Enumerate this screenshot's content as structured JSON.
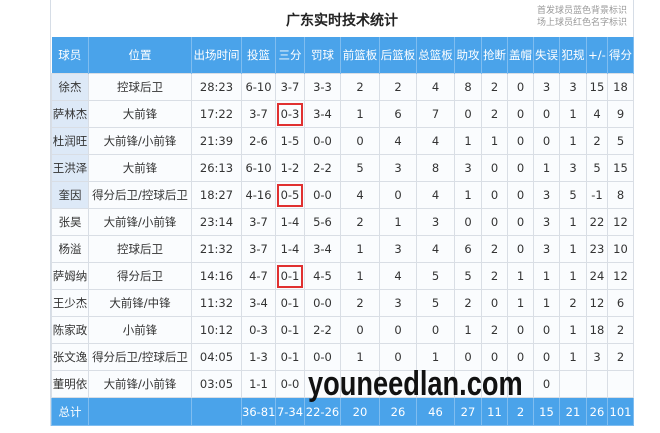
{
  "title": "广东实时技术统计",
  "legend": [
    "首发球员蓝色背景标识",
    "场上球员红色名字标识"
  ],
  "headers": [
    "球员",
    "位置",
    "出场时间",
    "投篮",
    "三分",
    "罚球",
    "前篮板",
    "后篮板",
    "总篮板",
    "助攻",
    "抢断",
    "盖帽",
    "失误",
    "犯规",
    "+/-",
    "得分"
  ],
  "rows": [
    [
      "徐杰",
      "控球后卫",
      "28:23",
      "6-10",
      "3-7",
      "3-3",
      "2",
      "2",
      "4",
      "8",
      "2",
      "0",
      "3",
      "3",
      "15",
      "18"
    ],
    [
      "萨林杰",
      "大前锋",
      "17:22",
      "3-7",
      "0-3",
      "3-4",
      "1",
      "6",
      "7",
      "0",
      "2",
      "0",
      "0",
      "1",
      "4",
      "9"
    ],
    [
      "杜润旺",
      "大前锋/小前锋",
      "21:39",
      "2-6",
      "1-5",
      "0-0",
      "0",
      "4",
      "4",
      "1",
      "1",
      "0",
      "0",
      "1",
      "2",
      "5"
    ],
    [
      "王洪泽",
      "大前锋",
      "26:13",
      "6-10",
      "1-2",
      "2-2",
      "5",
      "3",
      "8",
      "3",
      "0",
      "0",
      "1",
      "3",
      "5",
      "15"
    ],
    [
      "奎因",
      "得分后卫/控球后卫",
      "18:27",
      "4-16",
      "0-5",
      "0-0",
      "4",
      "0",
      "4",
      "1",
      "0",
      "0",
      "3",
      "5",
      "-1",
      "8"
    ],
    [
      "张昊",
      "大前锋/小前锋",
      "23:14",
      "3-7",
      "1-4",
      "5-6",
      "2",
      "1",
      "3",
      "0",
      "0",
      "0",
      "3",
      "1",
      "22",
      "12"
    ],
    [
      "杨溢",
      "控球后卫",
      "21:32",
      "3-7",
      "1-4",
      "3-4",
      "1",
      "3",
      "4",
      "6",
      "2",
      "0",
      "3",
      "1",
      "23",
      "10"
    ],
    [
      "萨姆纳",
      "得分后卫",
      "14:16",
      "4-7",
      "0-1",
      "4-5",
      "1",
      "4",
      "5",
      "5",
      "2",
      "1",
      "1",
      "1",
      "24",
      "12"
    ],
    [
      "王少杰",
      "大前锋/中锋",
      "11:32",
      "3-4",
      "0-1",
      "0-0",
      "2",
      "3",
      "5",
      "2",
      "0",
      "1",
      "1",
      "2",
      "12",
      "6"
    ],
    [
      "陈家政",
      "小前锋",
      "10:12",
      "0-3",
      "0-1",
      "2-2",
      "0",
      "0",
      "0",
      "1",
      "2",
      "0",
      "0",
      "1",
      "18",
      "2"
    ],
    [
      "张文逸",
      "得分后卫/控球后卫",
      "04:05",
      "1-3",
      "0-1",
      "0-0",
      "1",
      "0",
      "1",
      "0",
      "0",
      "0",
      "0",
      "1",
      "3",
      "2"
    ],
    [
      "董明依",
      "大前锋/小前锋",
      "03:05",
      "1-1",
      "0-0",
      "",
      "",
      "",
      "",
      "",
      "",
      "",
      "0",
      "",
      "",
      ""
    ]
  ],
  "starters": [
    0,
    1,
    2,
    3,
    4
  ],
  "highlighted_three_pt_rows": [
    1,
    4,
    7
  ],
  "total": [
    "总计",
    "",
    "",
    "36-81",
    "7-34",
    "22-26",
    "20",
    "26",
    "46",
    "27",
    "11",
    "2",
    "15",
    "21",
    "26",
    "101"
  ],
  "watermark": "youneedlan.com",
  "colors": {
    "header": "#4aa3ea",
    "starter_bg": "#dde9f7",
    "highlight_box": "#e03030"
  }
}
